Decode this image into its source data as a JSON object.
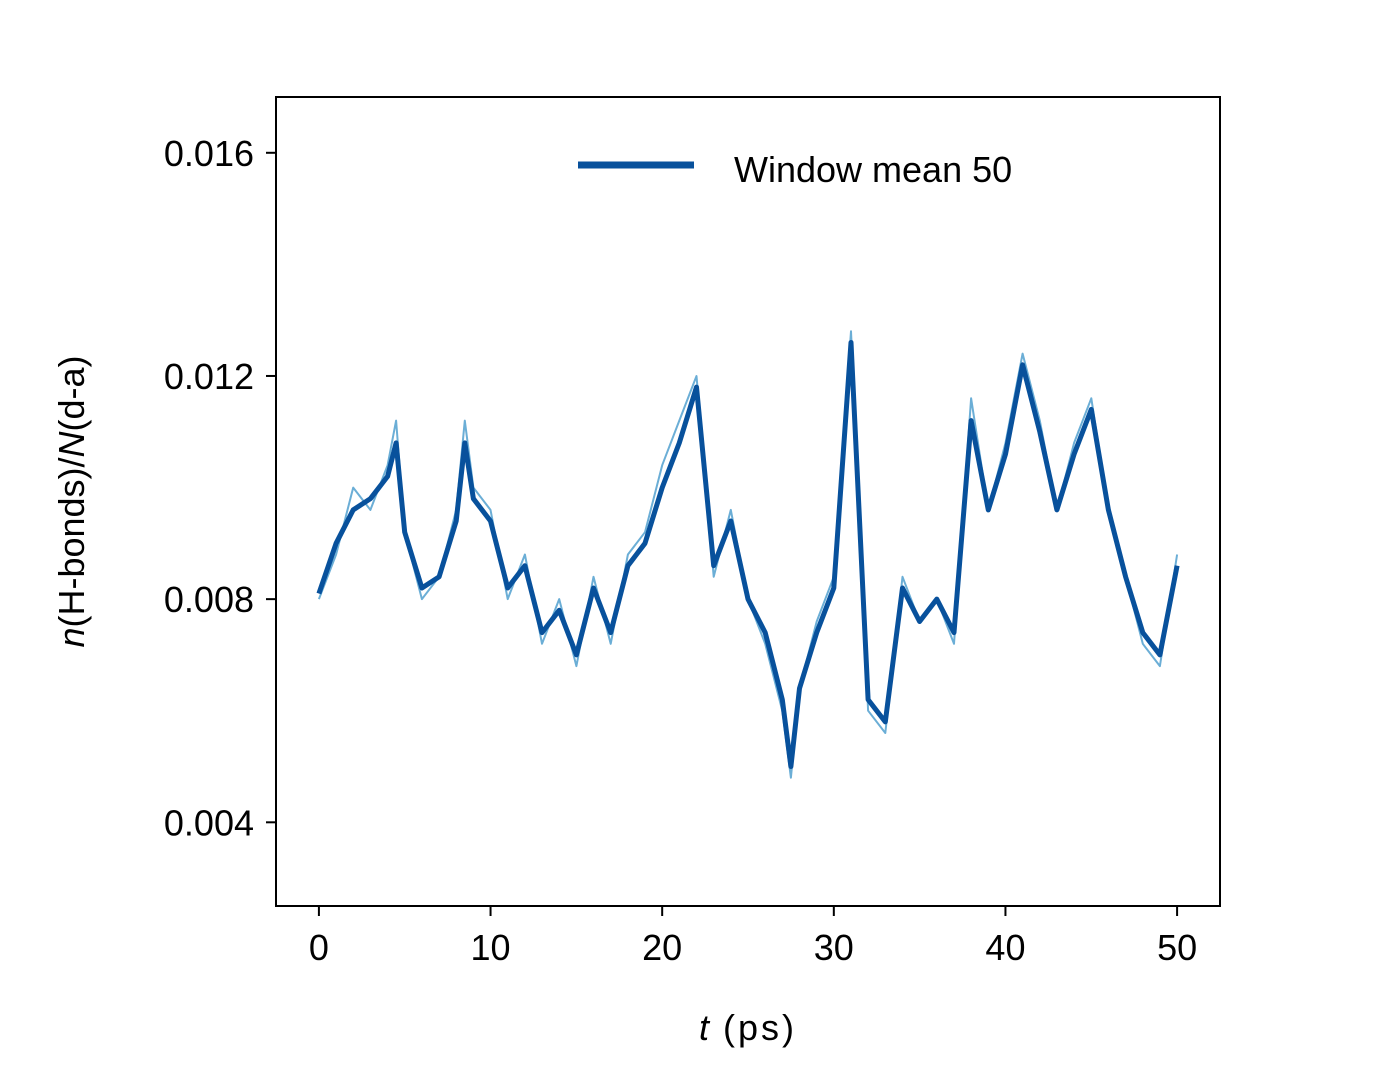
{
  "chart_data": {
    "type": "line",
    "xlabel_var": "t",
    "xlabel_unit": "(ps)",
    "ylabel_parts": [
      "n",
      "(H-bonds)/",
      "N",
      "(d-a)"
    ],
    "xlim": [
      -2.5,
      52.5
    ],
    "ylim": [
      0.0025,
      0.017
    ],
    "xticks": [
      0,
      10,
      20,
      30,
      40,
      50
    ],
    "xtick_labels": [
      "0",
      "10",
      "20",
      "30",
      "40",
      "50"
    ],
    "yticks": [
      0.004,
      0.008,
      0.012,
      0.016
    ],
    "ytick_labels": [
      "0.004",
      "0.008",
      "0.012",
      "0.016"
    ],
    "grid": false,
    "legend": {
      "position": "top-right",
      "frame": false,
      "entries": [
        "Window mean 50"
      ]
    },
    "series": [
      {
        "name": "raw",
        "color": "#6baed6",
        "x": [
          0.0,
          1.0,
          2.0,
          3.0,
          4.0,
          4.5,
          5.0,
          6.0,
          7.0,
          8.0,
          8.5,
          9.0,
          10.0,
          11.0,
          12.0,
          13.0,
          14.0,
          15.0,
          16.0,
          17.0,
          18.0,
          19.0,
          20.0,
          21.0,
          22.0,
          23.0,
          24.0,
          25.0,
          26.0,
          27.0,
          27.5,
          28.0,
          29.0,
          30.0,
          31.0,
          32.0,
          33.0,
          34.0,
          35.0,
          36.0,
          37.0,
          38.0,
          39.0,
          40.0,
          41.0,
          42.0,
          43.0,
          44.0,
          45.0,
          46.0,
          47.0,
          48.0,
          49.0,
          50.0
        ],
        "y": [
          0.008,
          0.0088,
          0.01,
          0.0096,
          0.0104,
          0.0112,
          0.0092,
          0.008,
          0.0084,
          0.0096,
          0.0112,
          0.01,
          0.0096,
          0.008,
          0.0088,
          0.0072,
          0.008,
          0.0068,
          0.0084,
          0.0072,
          0.0088,
          0.0092,
          0.0104,
          0.0112,
          0.012,
          0.0084,
          0.0096,
          0.008,
          0.0072,
          0.006,
          0.0048,
          0.0064,
          0.0076,
          0.0084,
          0.0128,
          0.006,
          0.0056,
          0.0084,
          0.0076,
          0.008,
          0.0072,
          0.0116,
          0.0096,
          0.0108,
          0.0124,
          0.0112,
          0.0096,
          0.0108,
          0.0116,
          0.0096,
          0.0084,
          0.0072,
          0.0068,
          0.0088
        ]
      },
      {
        "name": "Window mean 50",
        "color": "#08519c",
        "x": [
          0.0,
          1.0,
          2.0,
          3.0,
          4.0,
          4.5,
          5.0,
          6.0,
          7.0,
          8.0,
          8.5,
          9.0,
          10.0,
          11.0,
          12.0,
          13.0,
          14.0,
          15.0,
          16.0,
          17.0,
          18.0,
          19.0,
          20.0,
          21.0,
          22.0,
          23.0,
          24.0,
          25.0,
          26.0,
          27.0,
          27.5,
          28.0,
          29.0,
          30.0,
          31.0,
          32.0,
          33.0,
          34.0,
          35.0,
          36.0,
          37.0,
          38.0,
          39.0,
          40.0,
          41.0,
          42.0,
          43.0,
          44.0,
          45.0,
          46.0,
          47.0,
          48.0,
          49.0,
          50.0
        ],
        "y": [
          0.0081,
          0.009,
          0.0096,
          0.0098,
          0.0102,
          0.0108,
          0.0092,
          0.0082,
          0.0084,
          0.0094,
          0.0108,
          0.0098,
          0.0094,
          0.0082,
          0.0086,
          0.0074,
          0.0078,
          0.007,
          0.0082,
          0.0074,
          0.0086,
          0.009,
          0.01,
          0.0108,
          0.0118,
          0.0086,
          0.0094,
          0.008,
          0.0074,
          0.0062,
          0.005,
          0.0064,
          0.0074,
          0.0082,
          0.0126,
          0.0062,
          0.0058,
          0.0082,
          0.0076,
          0.008,
          0.0074,
          0.0112,
          0.0096,
          0.0106,
          0.0122,
          0.011,
          0.0096,
          0.0106,
          0.0114,
          0.0096,
          0.0084,
          0.0074,
          0.007,
          0.0086
        ]
      }
    ]
  }
}
